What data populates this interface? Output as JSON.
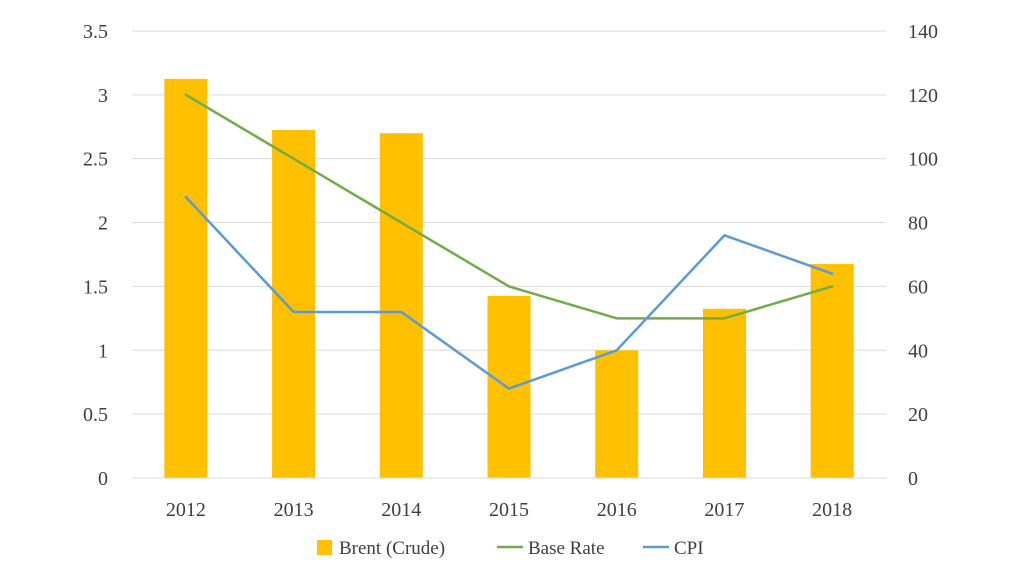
{
  "chart_data": {
    "type": "bar",
    "categories": [
      "2012",
      "2013",
      "2014",
      "2015",
      "2016",
      "2017",
      "2018"
    ],
    "series": [
      {
        "name": "Brent (Crude)",
        "type": "bar",
        "axis": "right",
        "color": "#FFC000",
        "values": [
          125,
          109,
          108,
          57,
          40,
          53,
          67
        ]
      },
      {
        "name": "Base Rate",
        "type": "line",
        "axis": "left",
        "color": "#70AD47",
        "values": [
          3.0,
          2.5,
          2.0,
          1.5,
          1.25,
          1.25,
          1.5
        ]
      },
      {
        "name": "CPI",
        "type": "line",
        "axis": "left",
        "color": "#5B9BD5",
        "values": [
          2.2,
          1.3,
          1.3,
          0.7,
          1.0,
          1.9,
          1.6
        ]
      }
    ],
    "y_left": {
      "ylim": [
        0,
        3.5
      ],
      "ticks": [
        "0",
        "0.5",
        "1",
        "1.5",
        "2",
        "2.5",
        "3",
        "3.5"
      ]
    },
    "y_right": {
      "ylim": [
        0,
        140
      ],
      "ticks": [
        "0",
        "20",
        "40",
        "60",
        "80",
        "100",
        "120",
        "140"
      ]
    },
    "grid": true,
    "legend": "bottom-center"
  }
}
